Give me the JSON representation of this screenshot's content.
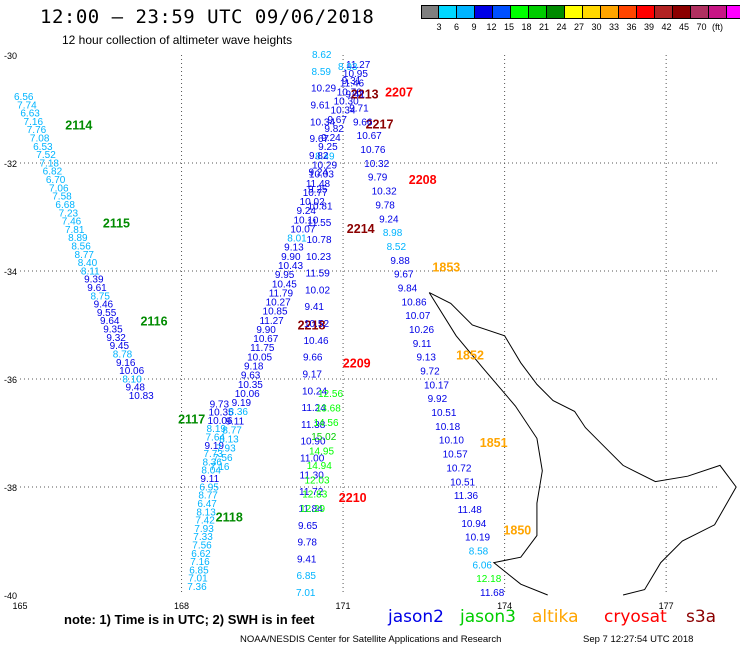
{
  "header": {
    "title": "12:00 – 23:59 UTC 09/06/2018",
    "subtitle": "12 hour collection of altimeter wave heights"
  },
  "colorbar": {
    "colors": [
      "#7f7f7f",
      "#00d7ff",
      "#00b4ff",
      "#0000e6",
      "#0050ff",
      "#00ff00",
      "#00cd00",
      "#008b00",
      "#ffff00",
      "#ffd700",
      "#ffa500",
      "#ff4500",
      "#ff0000",
      "#b22222",
      "#8b0000",
      "#b03060",
      "#c71585",
      "#ff00ff"
    ],
    "labels": [
      "3",
      "6",
      "9",
      "12",
      "15",
      "18",
      "21",
      "24",
      "27",
      "30",
      "33",
      "36",
      "39",
      "42",
      "45",
      "70"
    ],
    "unit": "(ft)"
  },
  "map": {
    "lat_range": [
      -40,
      -30
    ],
    "lon_range": [
      165,
      178
    ],
    "lat_labels": [
      "-30",
      "-32",
      "-34",
      "-36",
      "-38",
      "-40"
    ],
    "lon_labels": [
      "165",
      "168",
      "171",
      "174",
      "177"
    ],
    "coast_color": "#000000",
    "grid": "dotted"
  },
  "tracks": [
    {
      "satellite": "jason2",
      "color": "#0000e6",
      "wave_heights": [
        "6.56",
        "7.74",
        "6.63",
        "7.16",
        "7.76",
        "7.08",
        "6.53",
        "7.52",
        "7.18",
        "6.82",
        "6.70",
        "7.06",
        "7.58",
        "6.68",
        "7.23",
        "7.46",
        "7.81",
        "8.89",
        "8.56",
        "8.77",
        "8.40",
        "8.11",
        "9.39",
        "9.61",
        "8.75",
        "9.46",
        "9.55",
        "9.64",
        "9.35",
        "9.32",
        "9.45",
        "8.78",
        "9.16",
        "10.06",
        "8.10",
        "9.48",
        "10.83",
        "9.73",
        "10.35",
        "10.06",
        "8.19",
        "7.64",
        "9.19",
        "7.73",
        "8.36",
        "8.04",
        "9.11",
        "6.95",
        "8.77",
        "6.47",
        "8.13",
        "7.42",
        "7.93",
        "7.33",
        "7.56",
        "6.62",
        "7.16",
        "6.85",
        "7.01",
        "7.36"
      ],
      "passes": [
        {
          "id": "2114",
          "color": "#008b00"
        },
        {
          "id": "2115",
          "color": "#008b00"
        },
        {
          "id": "2116",
          "color": "#008b00"
        },
        {
          "id": "2117",
          "color": "#008b00"
        },
        {
          "id": "2118",
          "color": "#008b00"
        }
      ]
    },
    {
      "satellite": "jason3-north",
      "color": "#0000e6",
      "wave_heights": [
        "11.27",
        "10.95",
        "11.46",
        "10.76",
        "10.30",
        "10.34",
        "9.67",
        "9.82",
        "9.24",
        "9.25",
        "8.49",
        "10.29",
        "10.03",
        "11.48",
        "10.77",
        "10.02",
        "9.24",
        "10.10",
        "10.07",
        "8.01",
        "9.13",
        "9.90",
        "10.43",
        "9.95",
        "10.45",
        "11.79",
        "10.27",
        "10.85",
        "11.27",
        "9.90",
        "10.67",
        "11.75",
        "10.05",
        "9.18",
        "9.63",
        "10.35",
        "10.06",
        "9.19",
        "8.36",
        "9.11",
        "8.77",
        "8.13",
        "7.93",
        "7.56",
        "7.16"
      ],
      "passes": [
        {
          "id": "2217",
          "color": "#8b0000"
        },
        {
          "id": "2218",
          "color": "#8b0000"
        }
      ]
    },
    {
      "satellite": "jason3-south",
      "color": "#0000e6",
      "wave_heights": [
        "8.62",
        "8.59",
        "10.29",
        "9.61",
        "10.34",
        "9.67",
        "9.82",
        "9.24",
        "9.25",
        "10.81",
        "11.55",
        "10.78",
        "10.23",
        "11.59",
        "10.02",
        "9.41",
        "10.52",
        "10.46",
        "9.66",
        "9.17",
        "10.24",
        "11.24",
        "11.38",
        "10.90",
        "11.00",
        "11.30",
        "11.72",
        "11.84",
        "9.65",
        "9.78",
        "9.41",
        "6.85",
        "7.01"
      ],
      "passes": [
        {
          "id": "2213",
          "color": "#8b0000"
        },
        {
          "id": "2214",
          "color": "#8b0000"
        },
        {
          "id": "2209",
          "color": "#ff0000"
        },
        {
          "id": "2210",
          "color": "#ff0000"
        }
      ]
    },
    {
      "satellite": "jason3-green",
      "color": "#00cd00",
      "wave_heights": [
        "12.56",
        "13.68",
        "14.56",
        "15.02",
        "14.95",
        "14.94",
        "12.03",
        "12.83",
        "12.29"
      ],
      "passes": []
    },
    {
      "satellite": "altika",
      "color": "#0000e6",
      "wave_heights": [
        "8.93",
        "9.31",
        "9.41",
        "9.71",
        "9.66",
        "10.67",
        "10.76",
        "10.32",
        "9.79",
        "10.32",
        "9.78",
        "9.24",
        "8.98",
        "8.52",
        "9.88",
        "9.67",
        "9.84",
        "10.86",
        "10.07",
        "10.26",
        "9.11",
        "9.13",
        "9.72",
        "10.17",
        "9.92",
        "10.51",
        "10.18",
        "10.10",
        "10.57",
        "10.72",
        "10.51",
        "11.36",
        "11.48",
        "10.94",
        "10.19",
        "8.58",
        "6.06",
        "12.18",
        "11.68"
      ],
      "passes": [
        {
          "id": "2207",
          "color": "#ff0000"
        },
        {
          "id": "2208",
          "color": "#ff0000"
        },
        {
          "id": "1853",
          "color": "#ffa500"
        },
        {
          "id": "1852",
          "color": "#ffa500"
        },
        {
          "id": "1851",
          "color": "#ffa500"
        },
        {
          "id": "1850",
          "color": "#ffa500"
        }
      ]
    }
  ],
  "footer": {
    "note": "note:  1) Time is in UTC;  2) SWH is in feet",
    "legend": [
      {
        "label": "jason2",
        "color": "#0000e6"
      },
      {
        "label": "jason3",
        "color": "#00cd00"
      },
      {
        "label": "altika",
        "color": "#ffa500"
      },
      {
        "label": "cryosat",
        "color": "#ff0000"
      },
      {
        "label": "s3a",
        "color": "#8b0000"
      }
    ],
    "credit": "NOAA/NESDIS Center for Satellite Applications and Research",
    "timestamp": "Sep  7 12:27:54 UTC 2018"
  }
}
